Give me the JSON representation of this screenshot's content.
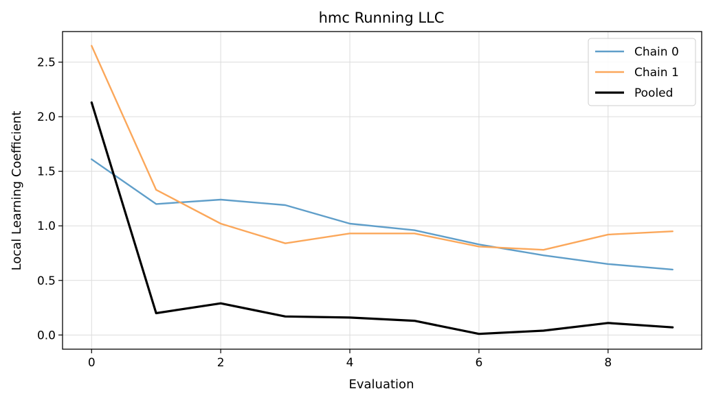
{
  "chart_data": {
    "type": "line",
    "title": "hmc Running LLC",
    "xlabel": "Evaluation",
    "ylabel": "Local Learning Coefficient",
    "xlim": [
      -0.45,
      9.45
    ],
    "ylim": [
      -0.13,
      2.78
    ],
    "x_ticks": [
      0,
      2,
      4,
      6,
      8
    ],
    "x_tick_labels": [
      "0",
      "2",
      "4",
      "6",
      "8"
    ],
    "y_ticks": [
      0.0,
      0.5,
      1.0,
      1.5,
      2.0,
      2.5
    ],
    "y_tick_labels": [
      "0.0",
      "0.5",
      "1.0",
      "1.5",
      "2.0",
      "2.5"
    ],
    "grid": true,
    "legend_position": "top-right",
    "x": [
      0,
      1,
      2,
      3,
      4,
      5,
      6,
      7,
      8,
      9
    ],
    "series": [
      {
        "name": "Chain 0",
        "color": "#5f9ec9",
        "values": [
          1.61,
          1.2,
          1.24,
          1.19,
          1.02,
          0.96,
          0.83,
          0.73,
          0.65,
          0.6
        ]
      },
      {
        "name": "Chain 1",
        "color": "#fba75a",
        "values": [
          2.65,
          1.33,
          1.02,
          0.84,
          0.93,
          0.93,
          0.81,
          0.78,
          0.92,
          0.95
        ]
      },
      {
        "name": "Pooled",
        "color": "#000000",
        "values": [
          2.13,
          0.2,
          0.29,
          0.17,
          0.16,
          0.13,
          0.01,
          0.04,
          0.11,
          0.07
        ]
      }
    ]
  }
}
